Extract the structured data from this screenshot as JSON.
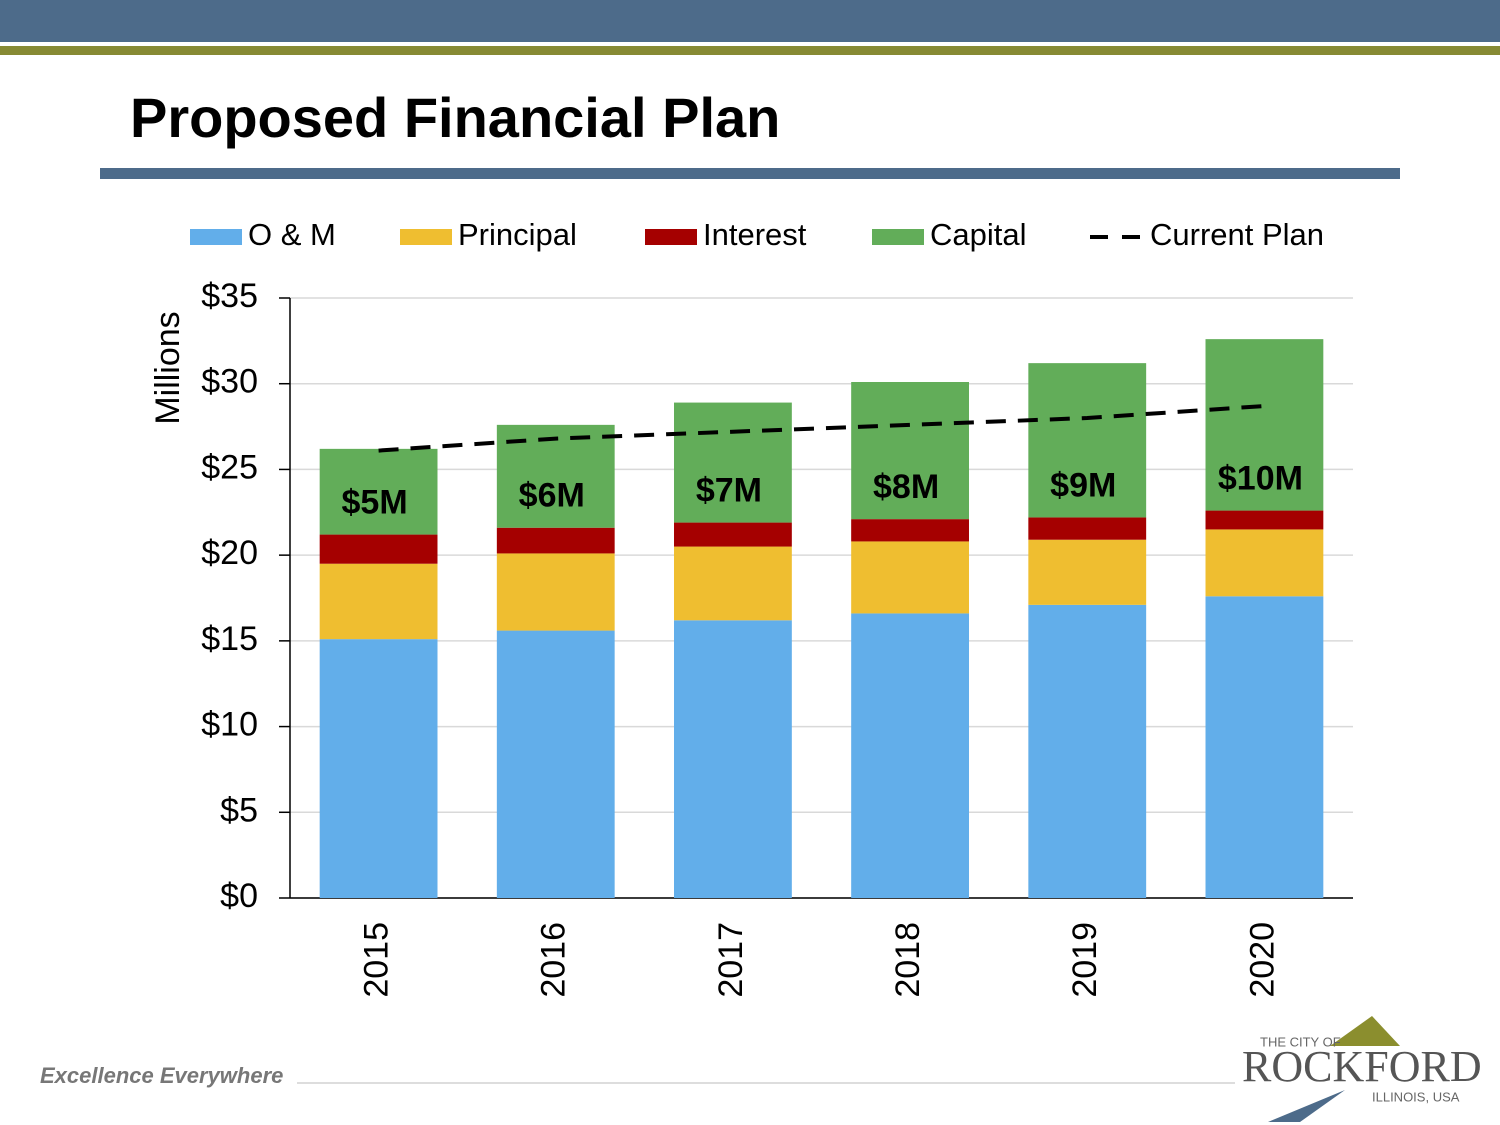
{
  "chart_data": {
    "type": "bar",
    "stacked": true,
    "title": "Proposed Financial Plan",
    "y_label": "Millions",
    "categories": [
      "2015",
      "2016",
      "2017",
      "2018",
      "2019",
      "2020"
    ],
    "series": [
      {
        "name": "O & M",
        "color": "#62aeea",
        "values": [
          15.1,
          15.6,
          16.2,
          16.6,
          17.1,
          17.6
        ]
      },
      {
        "name": "Principal",
        "color": "#efbe30",
        "values": [
          4.4,
          4.5,
          4.3,
          4.2,
          3.8,
          3.9
        ]
      },
      {
        "name": "Interest",
        "color": "#a50000",
        "values": [
          1.7,
          1.5,
          1.4,
          1.3,
          1.3,
          1.1
        ]
      },
      {
        "name": "Capital",
        "color": "#62ad59",
        "values": [
          5,
          6,
          7,
          8,
          9,
          10
        ],
        "value_labels": [
          "$5M",
          "$6M",
          "$7M",
          "$8M",
          "$9M",
          "$10M"
        ]
      },
      {
        "name": "Current Plan",
        "type": "line",
        "line_style": "dashed",
        "color": "#000000",
        "values": [
          26.1,
          26.8,
          27.2,
          27.6,
          28.0,
          28.7
        ]
      }
    ],
    "ylim": [
      0,
      35
    ],
    "yticks": [
      {
        "value": 0,
        "label": "$0"
      },
      {
        "value": 5,
        "label": "$5"
      },
      {
        "value": 10,
        "label": "$10"
      },
      {
        "value": 15,
        "label": "$15"
      },
      {
        "value": 20,
        "label": "$20"
      },
      {
        "value": 25,
        "label": "$25"
      },
      {
        "value": 30,
        "label": "$30"
      },
      {
        "value": 35,
        "label": "$35"
      }
    ],
    "grid": true,
    "legend": "top"
  },
  "footer": {
    "tagline": "Excellence Everywhere",
    "logo": {
      "top": "THE CITY OF",
      "name": "ROCKFORD",
      "bottom": "ILLINOIS, USA"
    }
  }
}
